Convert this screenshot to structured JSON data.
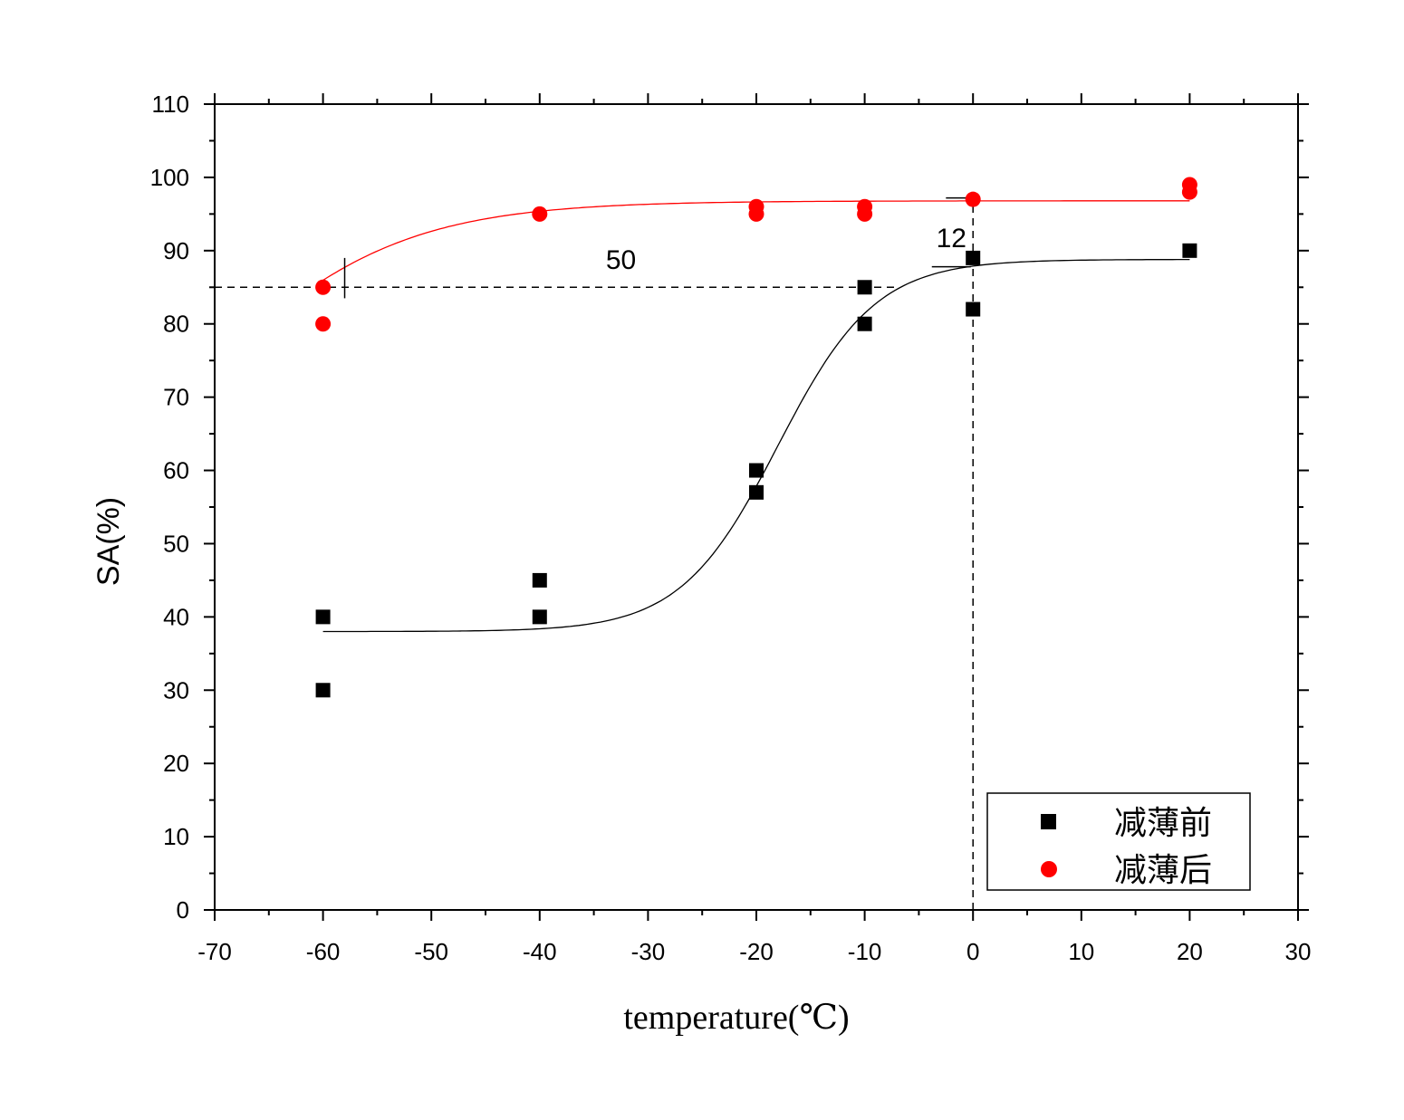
{
  "chart_data": {
    "type": "scatter",
    "title": "",
    "xlabel": "temperature(℃)",
    "ylabel": "SA(%)",
    "xlim": [
      -70,
      30
    ],
    "ylim": [
      0,
      110
    ],
    "x_ticks": [
      -70,
      -60,
      -50,
      -40,
      -30,
      -20,
      -10,
      0,
      10,
      20,
      30
    ],
    "y_ticks": [
      0,
      10,
      20,
      30,
      40,
      50,
      60,
      70,
      80,
      90,
      100,
      110
    ],
    "grid": false,
    "legend_position": "bottom-right",
    "series": [
      {
        "name": "减薄前",
        "marker": "square",
        "color": "#000000",
        "points": [
          {
            "x": -60,
            "y": 40
          },
          {
            "x": -60,
            "y": 30
          },
          {
            "x": -40,
            "y": 45
          },
          {
            "x": -40,
            "y": 40
          },
          {
            "x": -20,
            "y": 60
          },
          {
            "x": -20,
            "y": 57
          },
          {
            "x": -10,
            "y": 85
          },
          {
            "x": -10,
            "y": 80
          },
          {
            "x": 0,
            "y": 89
          },
          {
            "x": 0,
            "y": 82
          },
          {
            "x": 20,
            "y": 90
          }
        ],
        "fit": {
          "type": "boltzmann",
          "A1": 38,
          "A2": 88.8,
          "x0": -18,
          "dx": 4.5,
          "x_range": [
            -60,
            20
          ]
        }
      },
      {
        "name": "减薄后",
        "marker": "circle",
        "color": "#ff0000",
        "points": [
          {
            "x": -60,
            "y": 85
          },
          {
            "x": -60,
            "y": 80
          },
          {
            "x": -40,
            "y": 95
          },
          {
            "x": -20,
            "y": 96
          },
          {
            "x": -20,
            "y": 95
          },
          {
            "x": -10,
            "y": 96
          },
          {
            "x": -10,
            "y": 95
          },
          {
            "x": 0,
            "y": 97
          },
          {
            "x": 20,
            "y": 99
          },
          {
            "x": 20,
            "y": 98
          }
        ],
        "fit": {
          "type": "boltzmann",
          "A1": 52.2,
          "A2": 96.8,
          "x0": -70,
          "dx": 8.8,
          "x_range": [
            -60,
            20
          ]
        }
      }
    ],
    "reference_lines": [
      {
        "orientation": "horizontal",
        "y": 85,
        "x_from": -70,
        "x_to": -7,
        "style": "dashed"
      },
      {
        "orientation": "vertical",
        "x": 0,
        "y_from": 0,
        "y_to": 97,
        "style": "dashed"
      }
    ],
    "annotations": [
      {
        "text": "50",
        "x": -32.5,
        "y": 87.5
      },
      {
        "text": "12",
        "x": -2,
        "y": 90.5
      }
    ],
    "markers": [
      {
        "type": "vline",
        "x": -58,
        "y_from": 83.5,
        "y_to": 89
      },
      {
        "type": "hline",
        "y": 97.2,
        "x_from": -2.5,
        "x_to": 0
      },
      {
        "type": "hline",
        "y": 87.8,
        "x_from": -3.8,
        "x_to": -0.2
      }
    ]
  }
}
